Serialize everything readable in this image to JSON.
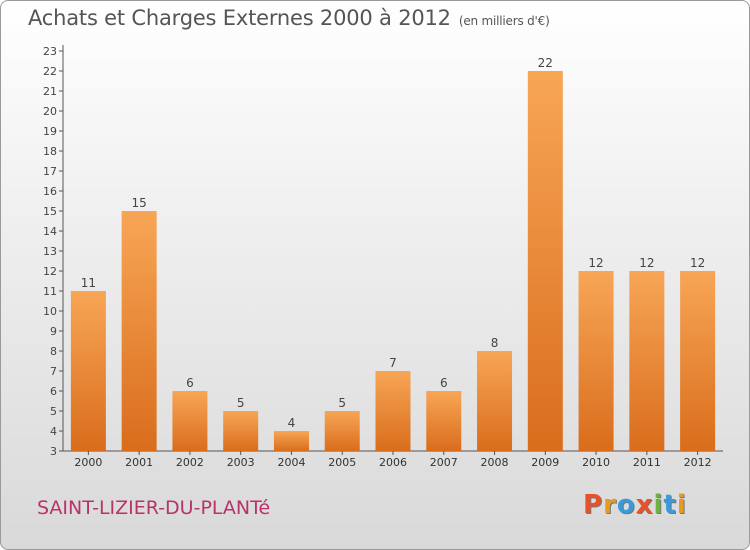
{
  "title": "Achats et Charges Externes 2000 à 2012",
  "subtitle": "(en milliers d'€)",
  "place": "SAINT-LIZIER-DU-PLANTé",
  "logo": {
    "letters": [
      "P",
      "r",
      "o",
      "x",
      "i",
      "t",
      "i"
    ],
    "colors": [
      "#e8522a",
      "#e89a1f",
      "#3a9ad9",
      "#e8522a",
      "#6cb33e",
      "#3a9ad9",
      "#e89a1f"
    ]
  },
  "colors": {
    "bar_top": "#f7a656",
    "bar_bottom": "#d96d1c",
    "axis": "#555555",
    "title": "#555555",
    "place": "#b8336a"
  },
  "chart_data": {
    "type": "bar",
    "categories": [
      "2000",
      "2001",
      "2002",
      "2003",
      "2004",
      "2005",
      "2006",
      "2007",
      "2008",
      "2009",
      "2010",
      "2011",
      "2012"
    ],
    "values": [
      11,
      15,
      6,
      5,
      4,
      5,
      7,
      6,
      8,
      22,
      12,
      12,
      12
    ],
    "ylim": [
      3,
      23
    ],
    "yticks": [
      3,
      4,
      5,
      6,
      7,
      8,
      9,
      10,
      11,
      12,
      13,
      14,
      15,
      16,
      17,
      18,
      19,
      20,
      21,
      22,
      23
    ],
    "grid": false,
    "legend": "none"
  }
}
